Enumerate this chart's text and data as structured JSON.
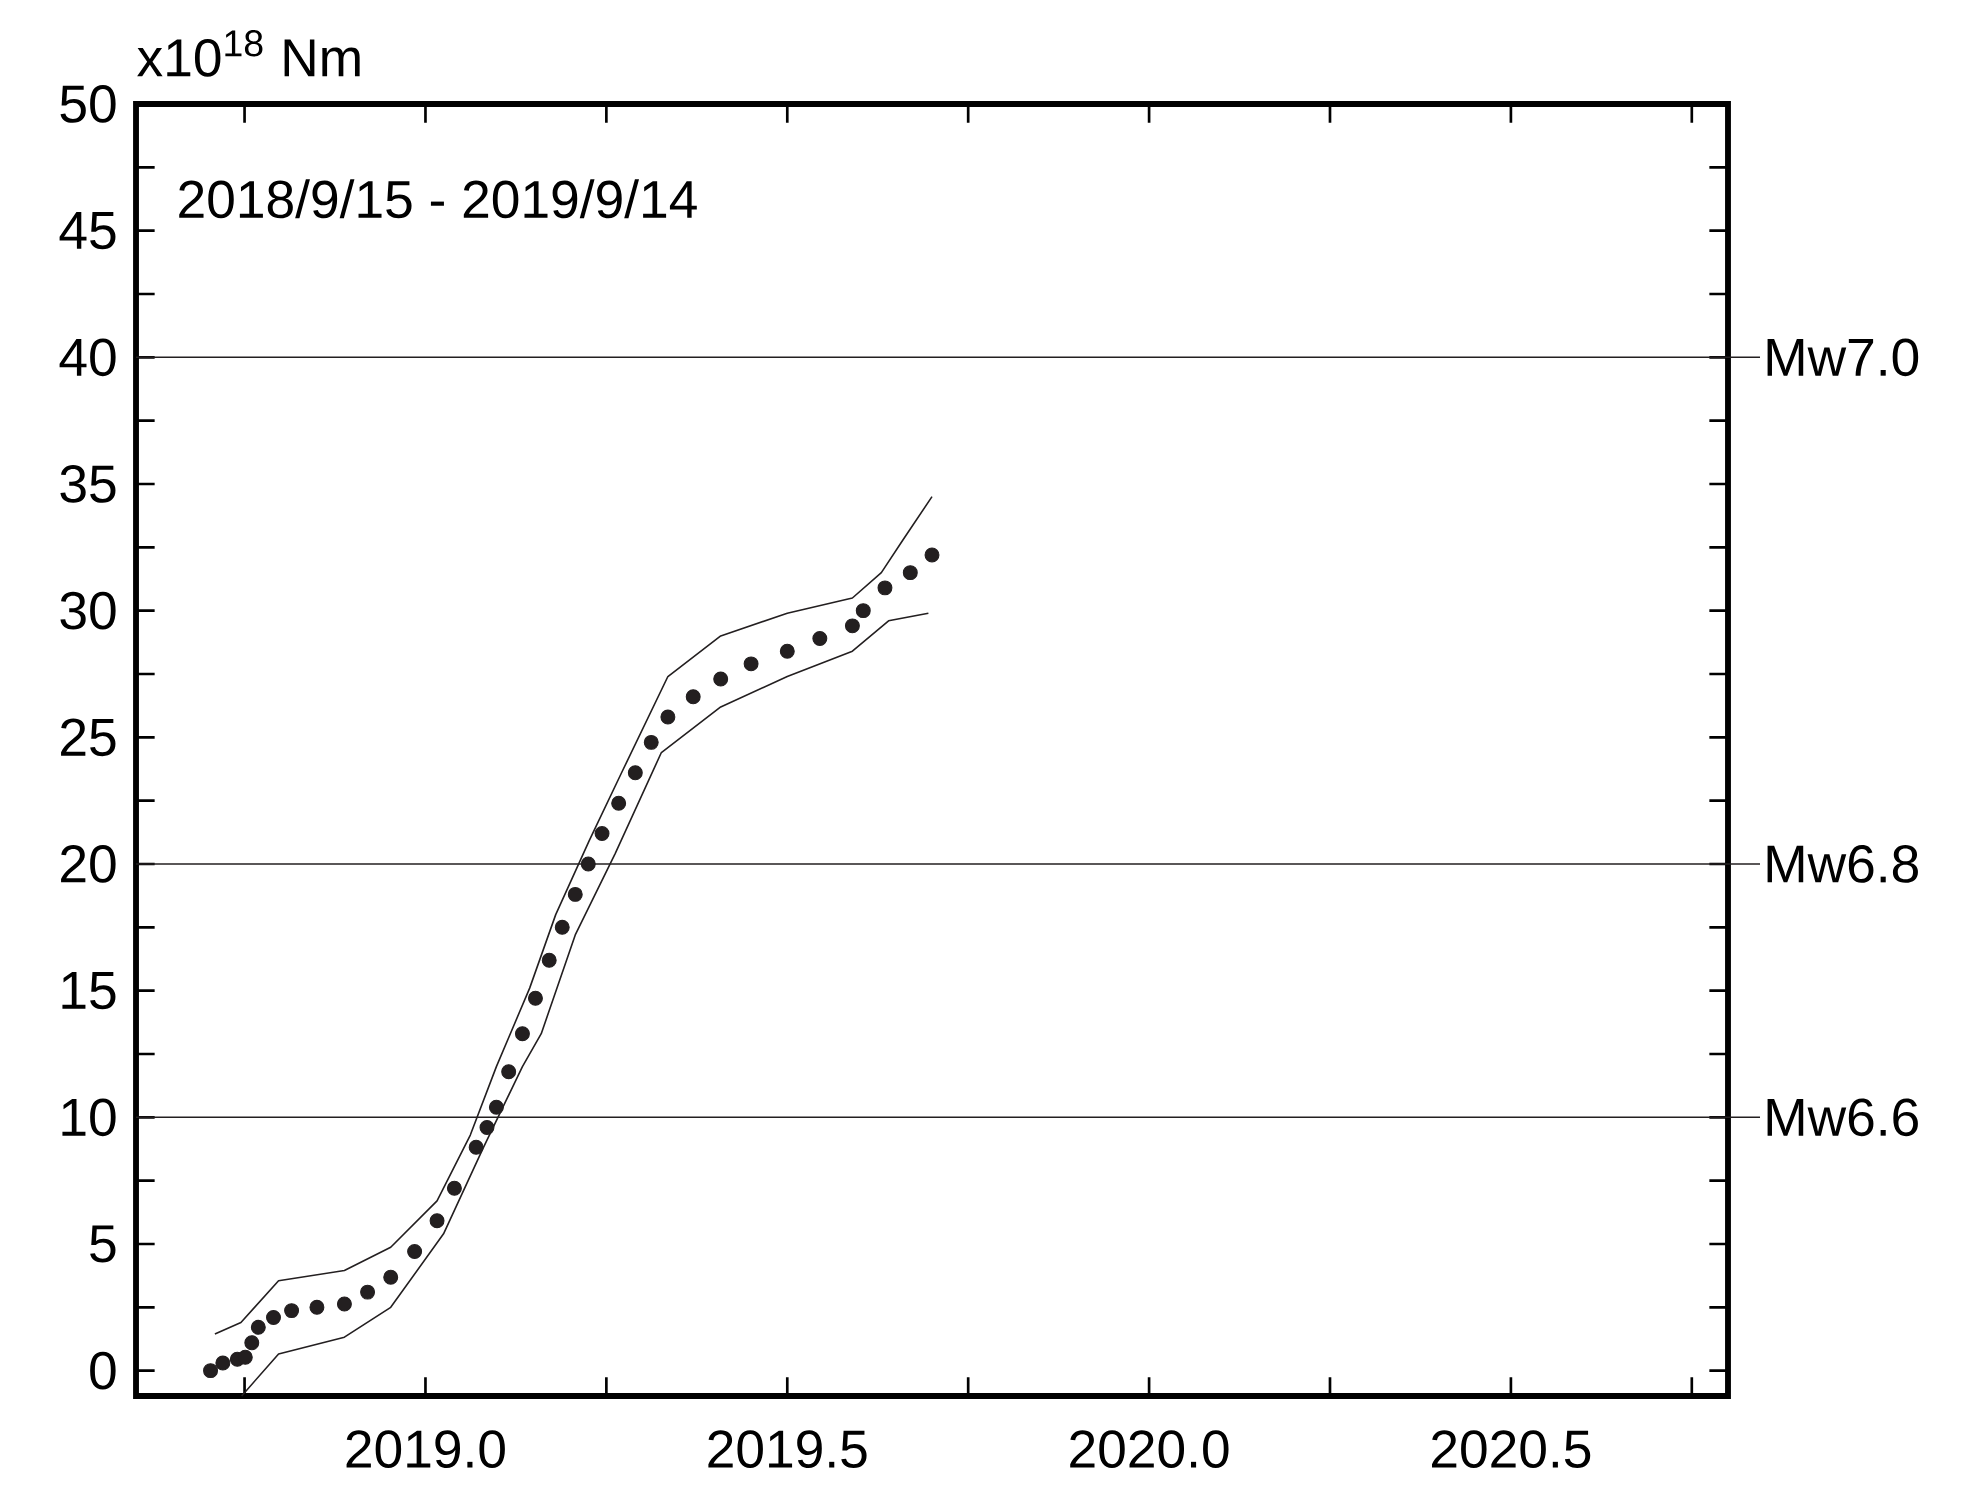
{
  "chart_data": {
    "type": "line",
    "ylabel": "x10$^{18}$ Nm",
    "annotations": [
      "2018/9/15 - 2019/9/14"
    ],
    "xlim": [
      2018.6,
      2020.8
    ],
    "ylim": [
      -1,
      50
    ],
    "xticks": [
      {
        "value": 2018.75,
        "label": null
      },
      {
        "value": 2019,
        "label": "2019.0"
      },
      {
        "value": 2019.25,
        "label": null
      },
      {
        "value": 2019.5,
        "label": "2019.5"
      },
      {
        "value": 2019.75,
        "label": null
      },
      {
        "value": 2020,
        "label": "2020.0"
      },
      {
        "value": 2020.25,
        "label": null
      },
      {
        "value": 2020.5,
        "label": "2020.5"
      },
      {
        "value": 2020.75,
        "label": null
      }
    ],
    "yticks": [
      0,
      {
        "value": 2.5,
        "label": null
      },
      5,
      {
        "value": 7.5,
        "label": null
      },
      10,
      {
        "value": 12.5,
        "label": null
      },
      15,
      {
        "value": 17.5,
        "label": null
      },
      20,
      {
        "value": 22.5,
        "label": null
      },
      25,
      {
        "value": 27.5,
        "label": null
      },
      30,
      {
        "value": 32.5,
        "label": null
      },
      35,
      {
        "value": 37.5,
        "label": null
      },
      40,
      {
        "value": 42.5,
        "label": null
      },
      45,
      {
        "value": 47.5,
        "label": null
      },
      50
    ],
    "ref_lines": [
      {
        "axis": "y",
        "value": 40,
        "label": "Mw7.0",
        "color": "#231f20"
      },
      {
        "axis": "y",
        "value": 20,
        "label": "Mw6.8",
        "color": "#231f20"
      },
      {
        "axis": "y",
        "value": 10,
        "label": "Mw6.6",
        "color": "#231f20"
      }
    ],
    "series": [
      {
        "type": "scatter",
        "marker": "circle",
        "color": "#231f20",
        "x": [
          2018.703,
          2018.72,
          2018.74,
          2018.751,
          2018.76,
          2018.769,
          2018.79,
          2018.815,
          2018.85,
          2018.888,
          2018.92,
          2018.952,
          2018.985,
          2019.016,
          2019.04,
          2019.07,
          2019.085,
          2019.098,
          2019.115,
          2019.134,
          2019.152,
          2019.171,
          2019.189,
          2019.207,
          2019.225,
          2019.244,
          2019.267,
          2019.29,
          2019.312,
          2019.335,
          2019.37,
          2019.408,
          2019.45,
          2019.5,
          2019.545,
          2019.59,
          2019.605,
          2019.635,
          2019.67,
          2019.7
        ],
        "values": [
          0.0,
          0.3,
          0.45,
          0.53,
          1.1,
          1.71,
          2.1,
          2.37,
          2.5,
          2.63,
          3.1,
          3.69,
          4.7,
          5.92,
          7.2,
          8.82,
          9.6,
          10.4,
          11.8,
          13.3,
          14.7,
          16.2,
          17.5,
          18.8,
          20.0,
          21.2,
          22.4,
          23.6,
          24.8,
          25.8,
          26.6,
          27.3,
          27.9,
          28.4,
          28.9,
          29.4,
          30.0,
          30.9,
          31.5,
          32.2
        ]
      },
      {
        "color": "#231f20",
        "x": [
          2018.709,
          2018.745,
          2018.797,
          2018.888,
          2018.952,
          2019.016,
          2019.062,
          2019.098,
          2019.144,
          2019.18,
          2019.226,
          2019.271,
          2019.335,
          2019.408,
          2019.5,
          2019.59,
          2019.63,
          2019.66,
          2019.7
        ],
        "values": [
          1.45,
          1.9,
          3.55,
          3.95,
          4.87,
          6.7,
          9.3,
          12.0,
          15.1,
          18.0,
          20.9,
          23.6,
          27.4,
          29.0,
          29.9,
          30.5,
          31.5,
          32.8,
          34.5
        ]
      },
      {
        "color": "#231f20",
        "x": [
          2018.746,
          2018.797,
          2018.888,
          2018.952,
          2019.025,
          2019.08,
          2019.134,
          2019.16,
          2019.207,
          2019.262,
          2019.326,
          2019.408,
          2019.5,
          2019.59,
          2019.64,
          2019.695
        ],
        "values": [
          -1.0,
          0.66,
          1.32,
          2.5,
          5.4,
          8.8,
          12.0,
          13.3,
          17.2,
          20.4,
          24.4,
          26.2,
          27.4,
          28.4,
          29.6,
          29.9
        ]
      }
    ]
  }
}
